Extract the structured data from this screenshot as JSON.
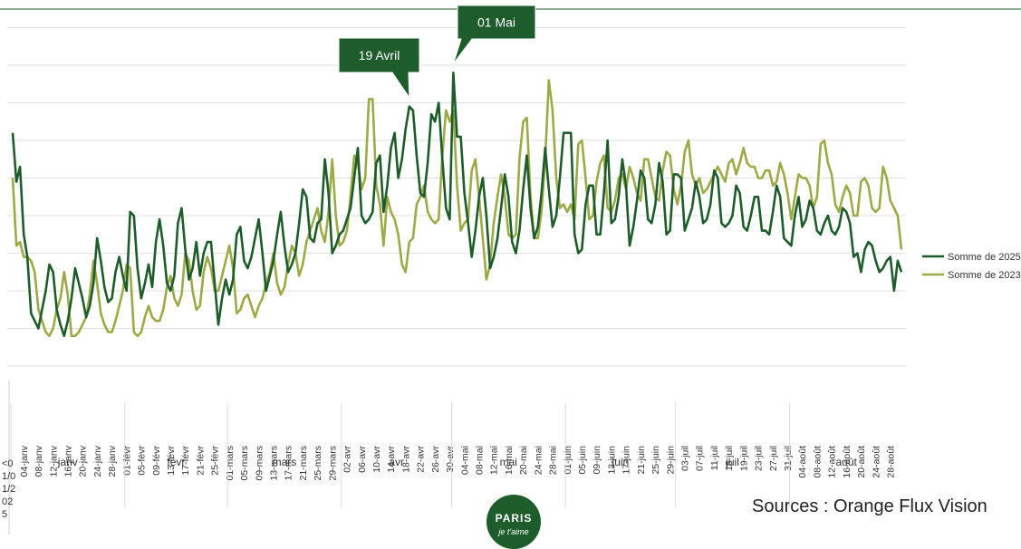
{
  "chart_data": {
    "type": "line",
    "categories": [
      "<01/01/2025",
      null,
      null,
      "04-janv",
      null,
      null,
      null,
      "08-janv",
      null,
      null,
      null,
      "12-janv",
      null,
      null,
      null,
      "16-janv",
      null,
      null,
      null,
      "20-janv",
      null,
      null,
      null,
      "24-janv",
      null,
      null,
      null,
      "28-janv",
      null,
      null,
      null,
      "01-févr",
      null,
      null,
      null,
      "05-févr",
      null,
      null,
      null,
      "09-févr",
      null,
      null,
      null,
      "13-févr",
      null,
      null,
      null,
      "17-févr",
      null,
      null,
      null,
      "21-févr",
      null,
      null,
      null,
      "25-févr",
      null,
      null,
      null,
      "01-mars",
      null,
      null,
      null,
      "05-mars",
      null,
      null,
      null,
      "09-mars",
      null,
      null,
      null,
      "13-mars",
      null,
      null,
      null,
      "17-mars",
      null,
      null,
      null,
      "21-mars",
      null,
      null,
      null,
      "25-mars",
      null,
      null,
      null,
      "29-mars",
      null,
      null,
      null,
      "02-avr",
      null,
      null,
      null,
      "06-avr",
      null,
      null,
      null,
      "10-avr",
      null,
      null,
      null,
      "14-avr",
      null,
      null,
      null,
      "18-avr",
      null,
      null,
      null,
      "22-avr",
      null,
      null,
      null,
      "26-avr",
      null,
      null,
      null,
      "30-avr",
      null,
      null,
      null,
      "04-mai",
      null,
      null,
      null,
      "08-mai",
      null,
      null,
      null,
      "12-mai",
      null,
      null,
      null,
      "16-mai",
      null,
      null,
      null,
      "20-mai",
      null,
      null,
      null,
      "24-mai",
      null,
      null,
      null,
      "28-mai",
      null,
      null,
      null,
      "01-juin",
      null,
      null,
      null,
      "05-juin",
      null,
      null,
      null,
      "09-juin",
      null,
      null,
      null,
      "13-juin",
      null,
      null,
      null,
      "17-juin",
      null,
      null,
      null,
      "21-juin",
      null,
      null,
      null,
      "25-juin",
      null,
      null,
      null,
      "29-juin",
      null,
      null,
      null,
      "03-juil",
      null,
      null,
      null,
      "07-juil",
      null,
      null,
      null,
      "11-juil",
      null,
      null,
      null,
      "15-juil",
      null,
      null,
      null,
      "19-juil",
      null,
      null,
      null,
      "23-juil",
      null,
      null,
      null,
      "27-juil",
      null,
      null,
      null,
      "31-juil",
      null,
      null,
      null,
      "04-août",
      null,
      null,
      null,
      "08-août",
      null,
      null,
      null,
      "12-août",
      null,
      null,
      null,
      "16-août",
      null,
      null,
      null,
      "20-août",
      null,
      null,
      null,
      "24-août",
      null,
      null,
      null,
      "28-août",
      null,
      null,
      null
    ],
    "month_groups": [
      "janv",
      "févr",
      "mars",
      "avr",
      "mai",
      "juin",
      "juil",
      "août"
    ],
    "series": [
      {
        "name": "Somme de 2025",
        "color": "#1f5c2b",
        "values": [
          6.2,
          4.9,
          5.3,
          3.5,
          2.9,
          1.4,
          1.2,
          1.0,
          1.5,
          2.0,
          2.7,
          2.5,
          1.5,
          1.1,
          0.8,
          1.2,
          1.8,
          2.6,
          2.2,
          1.8,
          1.3,
          1.6,
          2.2,
          3.4,
          2.8,
          2.1,
          1.7,
          1.8,
          2.5,
          2.9,
          2.4,
          2.0,
          4.1,
          4.0,
          2.6,
          1.8,
          2.2,
          2.7,
          2.1,
          3.3,
          3.9,
          3.2,
          2.2,
          2.0,
          2.4,
          3.8,
          4.2,
          3.1,
          2.3,
          2.6,
          3.3,
          2.4,
          3.0,
          3.3,
          3.3,
          2.2,
          1.1,
          1.8,
          2.3,
          1.9,
          2.3,
          3.5,
          3.7,
          2.8,
          2.6,
          2.9,
          3.4,
          3.9,
          3.0,
          2.0,
          2.4,
          2.8,
          3.5,
          4.1,
          3.2,
          2.5,
          2.7,
          3.0,
          3.8,
          4.7,
          4.5,
          3.4,
          3.3,
          3.8,
          3.9,
          5.5,
          4.6,
          3.0,
          3.2,
          3.5,
          3.6,
          3.9,
          4.2,
          5.0,
          5.8,
          4.0,
          3.8,
          3.9,
          4.1,
          5.4,
          5.6,
          4.1,
          4.8,
          5.8,
          6.2,
          5.0,
          5.5,
          6.3,
          6.9,
          6.8,
          5.6,
          4.6,
          4.5,
          5.4,
          6.7,
          6.5,
          7.0,
          5.5,
          4.2,
          3.9,
          7.8,
          6.1,
          6.1,
          4.6,
          3.8,
          2.9,
          3.6,
          4.5,
          5.0,
          4.0,
          2.6,
          2.9,
          3.4,
          4.2,
          5.1,
          4.5,
          3.3,
          3.0,
          3.6,
          4.7,
          5.6,
          4.2,
          3.4,
          3.7,
          4.6,
          5.8,
          4.7,
          3.7,
          4.0,
          5.0,
          6.2,
          6.2,
          6.2,
          3.5,
          3.0,
          3.1,
          4.3,
          4.8,
          4.8,
          3.5,
          3.5,
          4.6,
          6.0,
          3.8,
          3.9,
          4.5,
          5.5,
          4.8,
          3.2,
          3.7,
          4.4,
          5.2,
          5.0,
          3.9,
          3.8,
          4.3,
          5.4,
          4.9,
          3.5,
          3.6,
          5.1,
          5.1,
          5.0,
          3.6,
          3.9,
          4.2,
          4.9,
          4.5,
          3.8,
          3.9,
          4.3,
          5.2,
          5.0,
          3.8,
          3.7,
          3.8,
          4.0,
          4.8,
          4.6,
          3.7,
          3.6,
          4.0,
          4.5,
          4.5,
          3.6,
          3.6,
          3.5,
          4.1,
          4.8,
          4.5,
          3.4,
          3.3,
          3.2,
          4.0,
          4.5,
          3.7,
          3.9,
          4.4,
          4.2,
          3.6,
          3.5,
          3.8,
          4.0,
          3.6,
          3.5,
          3.7,
          4.2,
          4.1,
          3.8,
          2.9,
          3.0,
          2.5,
          3.1,
          3.3,
          3.2,
          2.8,
          2.5,
          2.6,
          2.8,
          2.9,
          2.0,
          2.8,
          2.5
        ]
      },
      {
        "name": "Somme de 2023",
        "color": "#9caa48",
        "values": [
          5.0,
          3.2,
          3.3,
          2.9,
          2.9,
          2.8,
          2.5,
          1.5,
          1.2,
          0.9,
          0.8,
          1.0,
          1.5,
          1.8,
          2.5,
          1.9,
          0.8,
          0.8,
          0.9,
          1.1,
          1.3,
          1.9,
          2.8,
          2.2,
          1.4,
          1.1,
          0.9,
          0.9,
          1.2,
          1.6,
          2.0,
          2.7,
          2.6,
          0.9,
          0.8,
          0.9,
          1.3,
          1.6,
          1.3,
          1.2,
          1.2,
          1.5,
          2.1,
          2.4,
          1.8,
          1.6,
          1.9,
          3.0,
          2.8,
          2.0,
          1.5,
          1.6,
          2.5,
          2.9,
          2.6,
          2.0,
          2.0,
          2.4,
          2.8,
          3.2,
          2.6,
          1.4,
          1.5,
          1.8,
          1.9,
          1.6,
          1.3,
          1.6,
          1.8,
          2.2,
          2.5,
          3.0,
          2.2,
          1.9,
          2.1,
          2.7,
          3.2,
          3.0,
          2.4,
          2.7,
          3.3,
          3.6,
          3.9,
          4.2,
          3.6,
          3.3,
          4.1,
          5.5,
          4.0,
          3.2,
          3.3,
          3.6,
          4.5,
          5.6,
          5.4,
          4.7,
          5.0,
          7.1,
          7.1,
          4.8,
          4.3,
          3.2,
          4.5,
          4.1,
          3.9,
          3.5,
          2.7,
          2.5,
          3.3,
          3.4,
          4.3,
          4.5,
          4.8,
          4.1,
          3.9,
          3.8,
          3.9,
          5.6,
          6.8,
          6.5,
          6.8,
          4.8,
          3.6,
          3.8,
          3.9,
          5.2,
          5.5,
          4.5,
          3.4,
          2.3,
          2.7,
          3.8,
          4.5,
          5.1,
          4.5,
          3.5,
          3.4,
          3.5,
          5.5,
          6.5,
          6.6,
          4.5,
          3.4,
          3.4,
          4.1,
          5.5,
          7.6,
          6.8,
          5.0,
          4.2,
          4.3,
          4.1,
          4.3,
          3.9,
          5.9,
          6.0,
          5.0,
          3.9,
          4.0,
          4.9,
          5.4,
          5.6,
          4.2,
          4.1,
          4.4,
          5.0,
          5.1,
          4.7,
          5.3,
          5.0,
          4.6,
          4.4,
          5.5,
          5.5,
          5.0,
          4.5,
          4.4,
          5.2,
          5.7,
          5.6,
          4.7,
          4.3,
          4.8,
          5.7,
          6.0,
          5.1,
          4.8,
          5.0,
          4.6,
          4.7,
          4.9,
          5.1,
          5.3,
          5.1,
          4.9,
          5.4,
          5.5,
          5.1,
          5.4,
          5.8,
          5.4,
          5.3,
          5.3,
          5.0,
          5.0,
          5.2,
          5.2,
          4.8,
          4.9,
          5.4,
          5.1,
          4.6,
          3.9,
          4.5,
          5.1,
          5.0,
          5.0,
          4.8,
          4.2,
          4.5,
          5.9,
          6.0,
          5.4,
          5.1,
          4.3,
          4.1,
          4.5,
          4.8,
          4.6,
          4.0,
          4.0,
          4.9,
          5.0,
          4.8,
          4.2,
          4.1,
          4.2,
          5.3,
          5.0,
          4.4,
          4.2,
          4.0,
          3.1
        ]
      }
    ],
    "ylim": [
      0,
      9.5
    ],
    "yticks": [
      0,
      1,
      2,
      3,
      4,
      5,
      6,
      7,
      8,
      9
    ],
    "grid": true,
    "legend": "right",
    "annotations": [
      {
        "text": "19 Avril",
        "index": 108
      },
      {
        "text": "01 Mai",
        "index": 120
      }
    ],
    "source": "Sources : Orange Flux Vision",
    "logo": {
      "line1": "PARIS",
      "line2": "je t'aime"
    }
  }
}
